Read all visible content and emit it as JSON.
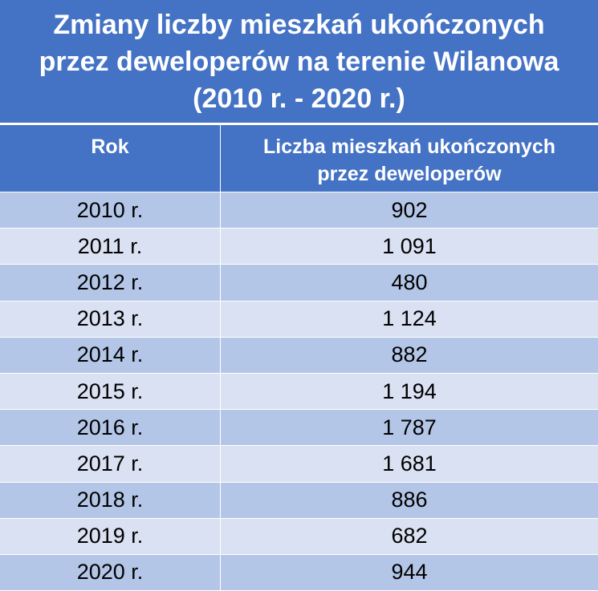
{
  "title": {
    "lines": [
      "Zmiany liczby mieszkań ukończonych",
      "przez deweloperów na terenie Wilanowa",
      "(2010 r. - 2020 r.)"
    ]
  },
  "header": {
    "year_label": "Rok",
    "value_label_line1": "Liczba mieszkań ukończonych",
    "value_label_line2": "przez deweloperów"
  },
  "colors": {
    "header_bg": "#4472c4",
    "row_dark": "#b4c6e7",
    "row_light": "#d9e1f2"
  },
  "chart_data": {
    "type": "table",
    "title": "Zmiany liczby mieszkań ukończonych przez deweloperów na terenie Wilanowa (2010 r. - 2020 r.)",
    "columns": [
      "Rok",
      "Liczba mieszkań ukończonych przez deweloperów"
    ],
    "rows": [
      {
        "year": "2010 r.",
        "value": "902"
      },
      {
        "year": "2011 r.",
        "value": "1 091"
      },
      {
        "year": "2012 r.",
        "value": "480"
      },
      {
        "year": "2013 r.",
        "value": "1 124"
      },
      {
        "year": "2014 r.",
        "value": "882"
      },
      {
        "year": "2015 r.",
        "value": "1 194"
      },
      {
        "year": "2016 r.",
        "value": "1 787"
      },
      {
        "year": "2017 r.",
        "value": "1 681"
      },
      {
        "year": "2018 r.",
        "value": "886"
      },
      {
        "year": "2019 r.",
        "value": "682"
      },
      {
        "year": "2020 r.",
        "value": "944"
      }
    ]
  }
}
